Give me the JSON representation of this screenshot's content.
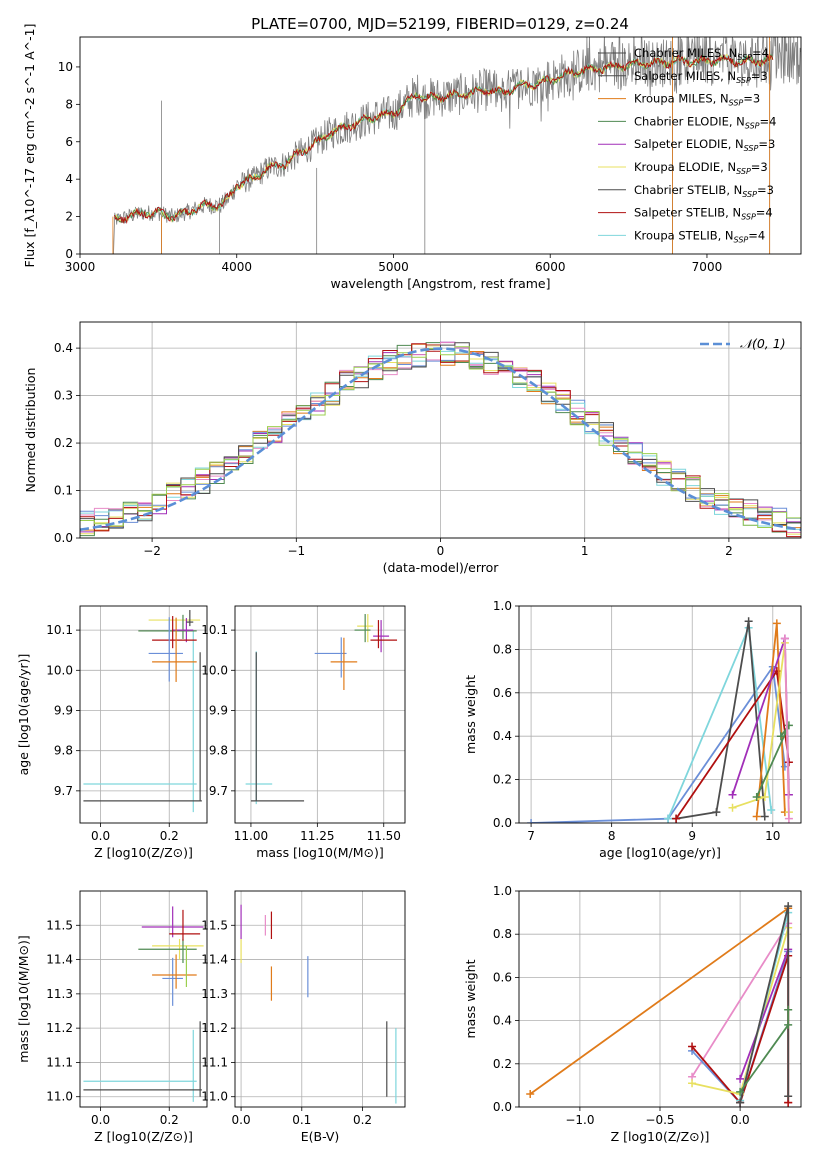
{
  "figure_title": "PLATE=0700, MJD=52199, FIBERID=0129, z=0.24",
  "colors": {
    "Chabrier MILES": "#4a4a4a",
    "Salpeter MILES": "#4a4a4a",
    "Kroupa MILES": "#e07b1a",
    "Chabrier ELODIE": "#4f8a52",
    "Salpeter ELODIE": "#a12fb8",
    "Kroupa ELODIE": "#e8e060",
    "Chabrier STELIB": "#4d4d4d",
    "Salpeter STELIB": "#b01010",
    "Kroupa STELIB": "#7fd6dc",
    "blue": "#6b8fd8",
    "pink": "#e88cc8",
    "olive": "#9ccf4f",
    "red": "#c03030",
    "normal": "#5b8fd6"
  },
  "chart_data": [
    {
      "type": "line",
      "title": "PLATE=0700, MJD=52199, FIBERID=0129, z=0.24",
      "xlabel": "wavelength [Angstrom, rest frame]",
      "ylabel": "Flux [f_λ10^-17 erg cm^-2 s^-1 A^-1]",
      "xlim": [
        3000,
        7600
      ],
      "ylim": [
        0,
        11.6
      ],
      "xticks": [
        "3000",
        "4000",
        "5000",
        "6000",
        "7000"
      ],
      "yticks": [
        "0",
        "2",
        "4",
        "6",
        "8",
        "10"
      ],
      "legend_position": "top-right",
      "data_spectrum_knots": [
        [
          3215,
          0
        ],
        [
          3220,
          1.8
        ],
        [
          3300,
          2.0
        ],
        [
          3400,
          2.2
        ],
        [
          3500,
          2.2
        ],
        [
          3600,
          2.0
        ],
        [
          3700,
          2.3
        ],
        [
          3800,
          2.6
        ],
        [
          3900,
          2.6
        ],
        [
          3950,
          3.0
        ],
        [
          4000,
          3.7
        ],
        [
          4100,
          4.0
        ],
        [
          4200,
          4.6
        ],
        [
          4300,
          4.8
        ],
        [
          4400,
          5.4
        ],
        [
          4500,
          5.9
        ],
        [
          4600,
          6.5
        ],
        [
          4700,
          6.8
        ],
        [
          4800,
          7.1
        ],
        [
          4900,
          7.4
        ],
        [
          5000,
          7.5
        ],
        [
          5100,
          8.2
        ],
        [
          5150,
          8.6
        ],
        [
          5200,
          8.3
        ],
        [
          5300,
          8.4
        ],
        [
          5400,
          8.5
        ],
        [
          5500,
          8.6
        ],
        [
          5600,
          8.8
        ],
        [
          5700,
          8.6
        ],
        [
          5800,
          9.0
        ],
        [
          5900,
          9.1
        ],
        [
          6000,
          9.3
        ],
        [
          6100,
          9.6
        ],
        [
          6200,
          9.8
        ],
        [
          6300,
          9.9
        ],
        [
          6400,
          10.0
        ],
        [
          6500,
          10.1
        ],
        [
          6600,
          10.2
        ],
        [
          6700,
          10.2
        ],
        [
          6800,
          10.3
        ],
        [
          6900,
          10.3
        ],
        [
          7000,
          10.3
        ],
        [
          7100,
          10.4
        ],
        [
          7200,
          10.3
        ],
        [
          7300,
          10.3
        ],
        [
          7420,
          10.4
        ]
      ],
      "series": [
        {
          "name": "Chabrier MILES",
          "n_ssp": "4"
        },
        {
          "name": "Salpeter MILES",
          "n_ssp": "3"
        },
        {
          "name": "Kroupa MILES",
          "n_ssp": "3"
        },
        {
          "name": "Chabrier ELODIE",
          "n_ssp": "4"
        },
        {
          "name": "Salpeter ELODIE",
          "n_ssp": "3"
        },
        {
          "name": "Kroupa ELODIE",
          "n_ssp": "3"
        },
        {
          "name": "Chabrier STELIB",
          "n_ssp": "3"
        },
        {
          "name": "Salpeter STELIB",
          "n_ssp": "4"
        },
        {
          "name": "Kroupa STELIB",
          "n_ssp": "4"
        }
      ]
    },
    {
      "type": "histogram",
      "xlabel": "(data-model)/error",
      "ylabel": "Normed distribution",
      "xlim": [
        -2.5,
        2.5
      ],
      "ylim": [
        0,
        0.455
      ],
      "xticks": [
        "−2",
        "−1",
        "0",
        "1",
        "2"
      ],
      "yticks": [
        "0.0",
        "0.1",
        "0.2",
        "0.3",
        "0.4"
      ],
      "bin_width": 0.1,
      "legend": "𝒩(0, 1)",
      "legend_position": "top-right"
    },
    {
      "type": "errorbar",
      "xlabel": "Z [log10(Z/Z⊙)]",
      "ylabel": "age  [log10(age/yr)]",
      "xlim": [
        -0.06,
        0.31
      ],
      "ylim": [
        9.62,
        10.16
      ],
      "xticks": [
        "0.0",
        "0.2"
      ],
      "yticks": [
        "9.7",
        "9.8",
        "9.9",
        "10.0",
        "10.1"
      ],
      "points": [
        {
          "series": "Kroupa STELIB",
          "x": 0.27,
          "xerr": [
            0.32,
            0.01
          ],
          "y": 9.717,
          "yerr": [
            0.07,
            0.38
          ]
        },
        {
          "series": "Chabrier STELIB",
          "x": 0.29,
          "xerr": [
            0.34,
            0.005
          ],
          "y": 9.675,
          "yerr": [
            0.0,
            0.37
          ]
        },
        {
          "series": "Kroupa ELODIE",
          "x": 0.22,
          "xerr": [
            0.08,
            0.07
          ],
          "y": 10.125,
          "yerr": [
            0.04,
            0.0
          ]
        },
        {
          "series": "Chabrier ELODIE",
          "x": 0.24,
          "xerr": [
            0.13,
            0.04
          ],
          "y": 10.098,
          "yerr": [
            0.02,
            0.04
          ]
        },
        {
          "series": "Salpeter ELODIE",
          "x": 0.25,
          "xerr": [
            0.04,
            0.02
          ],
          "y": 10.1,
          "yerr": [
            0.03,
            0.03
          ]
        },
        {
          "series": "Salpeter STELIB",
          "x": 0.21,
          "xerr": [
            0.06,
            0.07
          ],
          "y": 10.075,
          "yerr": [
            0.02,
            0.06
          ]
        },
        {
          "series": "blue",
          "x": 0.2,
          "xerr": [
            0.06,
            0.04
          ],
          "y": 10.042,
          "yerr": [
            0.07,
            0.09
          ]
        },
        {
          "series": "Kroupa MILES",
          "x": 0.22,
          "xerr": [
            0.07,
            0.06
          ],
          "y": 10.021,
          "yerr": [
            0.05,
            0.11
          ]
        },
        {
          "series": "Salpeter MILES",
          "x": 0.26,
          "xerr": [
            0.01,
            0.01
          ],
          "y": 10.12,
          "yerr": [
            0.01,
            0.03
          ]
        }
      ]
    },
    {
      "type": "errorbar",
      "xlabel": "mass [log10(M/M⊙)]",
      "xlim": [
        10.94,
        11.58
      ],
      "ylim": [
        9.62,
        10.16
      ],
      "xticks": [
        "11.00",
        "11.25",
        "11.50"
      ],
      "yticks": [
        "9.7",
        "9.8",
        "9.9",
        "10.0",
        "10.1"
      ],
      "points": [
        {
          "series": "Kroupa STELIB",
          "x": 11.02,
          "xerr": [
            0.04,
            0.06
          ],
          "y": 9.717,
          "yerr": [
            0.05,
            0.33
          ]
        },
        {
          "series": "Chabrier STELIB",
          "x": 11.02,
          "xerr": [
            0.02,
            0.18
          ],
          "y": 9.675,
          "yerr": [
            0.0,
            0.37
          ]
        },
        {
          "series": "Kroupa ELODIE",
          "x": 11.44,
          "xerr": [
            0.04,
            0.02
          ],
          "y": 10.11,
          "yerr": [
            0.04,
            0.03
          ]
        },
        {
          "series": "Chabrier ELODIE",
          "x": 11.43,
          "xerr": [
            0.04,
            0.02
          ],
          "y": 10.1,
          "yerr": [
            0.03,
            0.04
          ]
        },
        {
          "series": "Salpeter ELODIE",
          "x": 11.49,
          "xerr": [
            0.03,
            0.03
          ],
          "y": 10.085,
          "yerr": [
            0.04,
            0.04
          ]
        },
        {
          "series": "Salpeter STELIB",
          "x": 11.48,
          "xerr": [
            0.03,
            0.07
          ],
          "y": 10.075,
          "yerr": [
            0.02,
            0.05
          ]
        },
        {
          "series": "blue",
          "x": 11.34,
          "xerr": [
            0.1,
            0.02
          ],
          "y": 10.042,
          "yerr": [
            0.06,
            0.04
          ]
        },
        {
          "series": "Kroupa MILES",
          "x": 11.35,
          "xerr": [
            0.05,
            0.05
          ],
          "y": 10.021,
          "yerr": [
            0.07,
            0.06
          ]
        }
      ]
    },
    {
      "type": "line",
      "xlabel": "age  [log10(age/yr)]",
      "ylabel": "mass weight",
      "xlim": [
        6.85,
        10.35
      ],
      "ylim": [
        0,
        1
      ],
      "xticks": [
        "7",
        "8",
        "9",
        "10"
      ],
      "yticks": [
        "0.0",
        "0.2",
        "0.4",
        "0.6",
        "0.8",
        "1.0"
      ],
      "series": [
        {
          "color": "blue",
          "points": [
            [
              7.0,
              0.0
            ],
            [
              8.7,
              0.02
            ],
            [
              10.0,
              0.72
            ],
            [
              10.15,
              0.26
            ]
          ]
        },
        {
          "color": "Kroupa STELIB",
          "points": [
            [
              8.7,
              0.02
            ],
            [
              9.7,
              0.9
            ],
            [
              9.98,
              0.06
            ]
          ]
        },
        {
          "color": "Chabrier STELIB",
          "points": [
            [
              8.8,
              0.02
            ],
            [
              9.3,
              0.05
            ],
            [
              9.7,
              0.93
            ],
            [
              9.9,
              0.03
            ]
          ]
        },
        {
          "color": "Salpeter STELIB",
          "points": [
            [
              8.8,
              0.02
            ],
            [
              10.05,
              0.7
            ],
            [
              10.2,
              0.28
            ]
          ]
        },
        {
          "color": "Kroupa MILES",
          "points": [
            [
              9.8,
              0.03
            ],
            [
              10.05,
              0.92
            ],
            [
              10.15,
              0.05
            ]
          ]
        },
        {
          "color": "Salpeter ELODIE",
          "points": [
            [
              9.5,
              0.13
            ],
            [
              10.15,
              0.85
            ],
            [
              10.2,
              0.13
            ]
          ]
        },
        {
          "color": "Kroupa ELODIE",
          "points": [
            [
              9.5,
              0.07
            ],
            [
              9.9,
              0.12
            ],
            [
              10.15,
              0.83
            ],
            [
              10.2,
              0.05
            ]
          ]
        },
        {
          "color": "Chabrier ELODIE",
          "points": [
            [
              9.8,
              0.12
            ],
            [
              10.2,
              0.45
            ],
            [
              10.1,
              0.4
            ]
          ]
        },
        {
          "color": "pink",
          "points": [
            [
              10.15,
              0.85
            ],
            [
              10.2,
              0.02
            ]
          ]
        }
      ]
    },
    {
      "type": "errorbar",
      "xlabel": "Z [log10(Z/Z⊙)]",
      "ylabel": "mass [log10(M/M⊙)]",
      "xlim": [
        -0.06,
        0.31
      ],
      "ylim": [
        10.97,
        11.6
      ],
      "xticks": [
        "0.0",
        "0.2"
      ],
      "yticks": [
        "11.0",
        "11.1",
        "11.2",
        "11.3",
        "11.4",
        "11.5"
      ],
      "points": [
        {
          "series": "Kroupa STELIB",
          "x": 0.27,
          "xerr": [
            0.32,
            0.01
          ],
          "y": 11.045,
          "yerr": [
            0.06,
            0.15
          ]
        },
        {
          "series": "Chabrier STELIB",
          "x": 0.29,
          "xerr": [
            0.34,
            0.005
          ],
          "y": 11.02,
          "yerr": [
            0.02,
            0.2
          ]
        },
        {
          "series": "Kroupa ELODIE",
          "x": 0.23,
          "xerr": [
            0.08,
            0.07
          ],
          "y": 11.44,
          "yerr": [
            0.04,
            0.02
          ]
        },
        {
          "series": "Chabrier ELODIE",
          "x": 0.24,
          "xerr": [
            0.13,
            0.04
          ],
          "y": 11.43,
          "yerr": [
            0.04,
            0.03
          ]
        },
        {
          "series": "Salpeter ELODIE",
          "x": 0.21,
          "xerr": [
            0.09,
            0.09
          ],
          "y": 11.495,
          "yerr": [
            0.03,
            0.06
          ]
        },
        {
          "series": "Salpeter STELIB",
          "x": 0.24,
          "xerr": [
            0.04,
            0.05
          ],
          "y": 11.475,
          "yerr": [
            0.02,
            0.07
          ]
        },
        {
          "series": "blue",
          "x": 0.21,
          "xerr": [
            0.03,
            0.03
          ],
          "y": 11.345,
          "yerr": [
            0.08,
            0.06
          ]
        },
        {
          "series": "Kroupa MILES",
          "x": 0.22,
          "xerr": [
            0.07,
            0.06
          ],
          "y": 11.355,
          "yerr": [
            0.04,
            0.06
          ]
        },
        {
          "series": "olive",
          "x": 0.25,
          "xerr": [
            0.0,
            0.0
          ],
          "y": 11.38,
          "yerr": [
            0.06,
            0.06
          ]
        }
      ]
    },
    {
      "type": "errorbar",
      "xlabel": "E(B-V)",
      "xlim": [
        -0.01,
        0.27
      ],
      "ylim": [
        10.97,
        11.6
      ],
      "xticks": [
        "0.0",
        "0.1",
        "0.2"
      ],
      "yticks": [
        "11.0",
        "11.1",
        "11.2",
        "11.3",
        "11.4",
        "11.5"
      ],
      "points": [
        {
          "series": "Kroupa ELODIE",
          "x": 0.0,
          "y": 11.44,
          "yerr": [
            0.05,
            0.02
          ]
        },
        {
          "series": "Salpeter ELODIE",
          "x": 0.0,
          "y": 11.51,
          "yerr": [
            0.05,
            0.05
          ]
        },
        {
          "series": "pink",
          "x": 0.04,
          "y": 11.5,
          "yerr": [
            0.03,
            0.03
          ]
        },
        {
          "series": "Salpeter STELIB",
          "x": 0.05,
          "y": 11.5,
          "yerr": [
            0.04,
            0.04
          ]
        },
        {
          "series": "Kroupa MILES",
          "x": 0.05,
          "y": 11.33,
          "yerr": [
            0.05,
            0.05
          ]
        },
        {
          "series": "blue",
          "x": 0.11,
          "y": 11.35,
          "yerr": [
            0.06,
            0.06
          ]
        },
        {
          "series": "Chabrier STELIB",
          "x": 0.24,
          "y": 11.1,
          "yerr": [
            0.1,
            0.12
          ]
        },
        {
          "series": "Kroupa STELIB",
          "x": 0.255,
          "y": 11.08,
          "yerr": [
            0.1,
            0.12
          ]
        }
      ]
    },
    {
      "type": "line",
      "xlabel": "Z [log10(Z/Z⊙)]",
      "ylabel": "mass weight",
      "xlim": [
        -1.38,
        0.38
      ],
      "ylim": [
        0,
        1
      ],
      "xticks": [
        "−1.0",
        "−0.5",
        "0.0"
      ],
      "yticks": [
        "0.0",
        "0.2",
        "0.4",
        "0.6",
        "0.8",
        "1.0"
      ],
      "series": [
        {
          "color": "Kroupa MILES",
          "points": [
            [
              -1.31,
              0.06
            ],
            [
              0.3,
              0.92
            ],
            [
              0.3,
              0.02
            ]
          ]
        },
        {
          "color": "pink",
          "points": [
            [
              -0.3,
              0.14
            ],
            [
              0.3,
              0.85
            ],
            [
              0.3,
              0.02
            ]
          ]
        },
        {
          "color": "blue",
          "points": [
            [
              -0.3,
              0.26
            ],
            [
              0.0,
              0.02
            ],
            [
              0.3,
              0.72
            ]
          ]
        },
        {
          "color": "Salpeter STELIB",
          "points": [
            [
              -0.3,
              0.28
            ],
            [
              0.0,
              0.02
            ],
            [
              0.3,
              0.7
            ],
            [
              0.3,
              0.02
            ]
          ]
        },
        {
          "color": "Kroupa ELODIE",
          "points": [
            [
              -0.3,
              0.11
            ],
            [
              0.0,
              0.06
            ],
            [
              0.3,
              0.83
            ]
          ]
        },
        {
          "color": "Salpeter ELODIE",
          "points": [
            [
              0.0,
              0.13
            ],
            [
              0.3,
              0.73
            ]
          ]
        },
        {
          "color": "Kroupa STELIB",
          "points": [
            [
              0.0,
              0.03
            ],
            [
              0.3,
              0.9
            ]
          ]
        },
        {
          "color": "Chabrier STELIB",
          "points": [
            [
              0.0,
              0.02
            ],
            [
              0.3,
              0.93
            ],
            [
              0.3,
              0.05
            ]
          ]
        },
        {
          "color": "Chabrier ELODIE",
          "points": [
            [
              0.0,
              0.07
            ],
            [
              0.3,
              0.38
            ],
            [
              0.3,
              0.45
            ]
          ]
        }
      ]
    }
  ]
}
